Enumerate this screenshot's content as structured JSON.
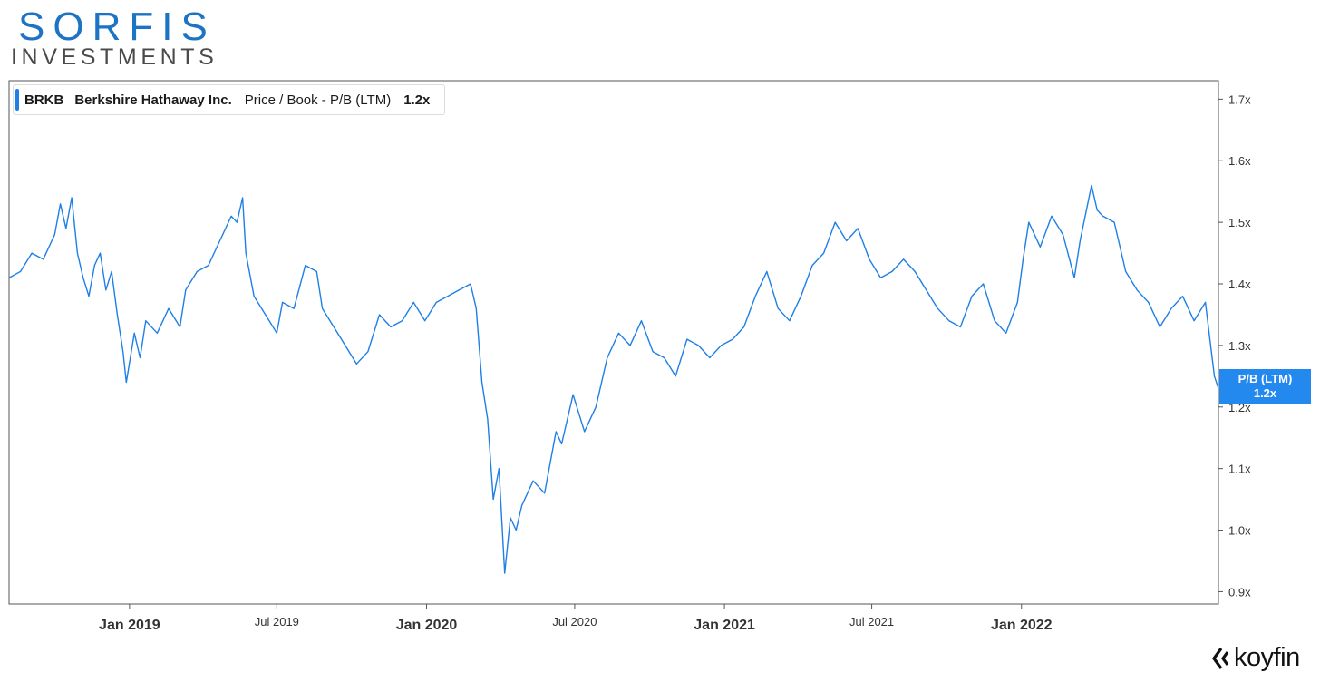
{
  "logo": {
    "name": "SORFIS",
    "tagline": "INVESTMENTS"
  },
  "legend": {
    "ticker": "BRKB",
    "company": "Berkshire Hathaway Inc.",
    "metric": "Price / Book - P/B (LTM)",
    "value": "1.2x",
    "color": "#1e7fe6"
  },
  "price_badge": {
    "label": "P/B (LTM)",
    "value": "1.2x",
    "color": "#2389ee"
  },
  "brand": {
    "name": "koyfin"
  },
  "chart_data": {
    "type": "line",
    "title": "",
    "xlabel": "",
    "ylabel": "",
    "xlim": [
      "2018-08-06",
      "2022-08-31"
    ],
    "ylim": [
      0.88,
      1.73
    ],
    "y_ticks": [
      {
        "value": 0.9,
        "label": "0.9x"
      },
      {
        "value": 1.0,
        "label": "1.0x"
      },
      {
        "value": 1.1,
        "label": "1.1x"
      },
      {
        "value": 1.2,
        "label": "1.2x"
      },
      {
        "value": 1.3,
        "label": "1.3x"
      },
      {
        "value": 1.4,
        "label": "1.4x"
      },
      {
        "value": 1.5,
        "label": "1.5x"
      },
      {
        "value": 1.6,
        "label": "1.6x"
      },
      {
        "value": 1.7,
        "label": "1.7x"
      }
    ],
    "x_ticks": [
      {
        "date": "2019-01-01",
        "label": "Jan 2019",
        "major": true
      },
      {
        "date": "2019-07-01",
        "label": "Jul 2019",
        "major": false
      },
      {
        "date": "2020-01-01",
        "label": "Jan 2020",
        "major": true
      },
      {
        "date": "2020-07-01",
        "label": "Jul 2020",
        "major": false
      },
      {
        "date": "2021-01-01",
        "label": "Jan 2021",
        "major": true
      },
      {
        "date": "2021-07-01",
        "label": "Jul 2021",
        "major": false
      },
      {
        "date": "2022-01-01",
        "label": "Jan 2022",
        "major": true
      }
    ],
    "grid": false,
    "line_color": "#1e7fe6",
    "series": [
      {
        "name": "BRKB Price / Book - P/B (LTM)",
        "points": [
          [
            "2018-08-06",
            1.41
          ],
          [
            "2018-08-20",
            1.42
          ],
          [
            "2018-09-03",
            1.45
          ],
          [
            "2018-09-17",
            1.44
          ],
          [
            "2018-10-01",
            1.48
          ],
          [
            "2018-10-08",
            1.53
          ],
          [
            "2018-10-15",
            1.49
          ],
          [
            "2018-10-22",
            1.54
          ],
          [
            "2018-10-29",
            1.45
          ],
          [
            "2018-11-05",
            1.41
          ],
          [
            "2018-11-12",
            1.38
          ],
          [
            "2018-11-19",
            1.43
          ],
          [
            "2018-11-26",
            1.45
          ],
          [
            "2018-12-03",
            1.39
          ],
          [
            "2018-12-10",
            1.42
          ],
          [
            "2018-12-17",
            1.35
          ],
          [
            "2018-12-24",
            1.29
          ],
          [
            "2018-12-28",
            1.24
          ],
          [
            "2019-01-07",
            1.32
          ],
          [
            "2019-01-14",
            1.28
          ],
          [
            "2019-01-21",
            1.34
          ],
          [
            "2019-02-04",
            1.32
          ],
          [
            "2019-02-18",
            1.36
          ],
          [
            "2019-03-04",
            1.33
          ],
          [
            "2019-03-11",
            1.39
          ],
          [
            "2019-03-25",
            1.42
          ],
          [
            "2019-04-08",
            1.43
          ],
          [
            "2019-04-22",
            1.47
          ],
          [
            "2019-05-06",
            1.51
          ],
          [
            "2019-05-13",
            1.5
          ],
          [
            "2019-05-20",
            1.54
          ],
          [
            "2019-05-24",
            1.45
          ],
          [
            "2019-06-03",
            1.38
          ],
          [
            "2019-06-17",
            1.35
          ],
          [
            "2019-07-01",
            1.32
          ],
          [
            "2019-07-08",
            1.37
          ],
          [
            "2019-07-22",
            1.36
          ],
          [
            "2019-08-05",
            1.43
          ],
          [
            "2019-08-19",
            1.42
          ],
          [
            "2019-08-26",
            1.36
          ],
          [
            "2019-09-09",
            1.33
          ],
          [
            "2019-09-23",
            1.3
          ],
          [
            "2019-10-07",
            1.27
          ],
          [
            "2019-10-21",
            1.29
          ],
          [
            "2019-11-04",
            1.35
          ],
          [
            "2019-11-18",
            1.33
          ],
          [
            "2019-12-02",
            1.34
          ],
          [
            "2019-12-16",
            1.37
          ],
          [
            "2019-12-30",
            1.34
          ],
          [
            "2020-01-13",
            1.37
          ],
          [
            "2020-01-27",
            1.38
          ],
          [
            "2020-02-10",
            1.39
          ],
          [
            "2020-02-24",
            1.4
          ],
          [
            "2020-03-02",
            1.36
          ],
          [
            "2020-03-09",
            1.24
          ],
          [
            "2020-03-16",
            1.18
          ],
          [
            "2020-03-23",
            1.05
          ],
          [
            "2020-03-30",
            1.1
          ],
          [
            "2020-04-06",
            0.93
          ],
          [
            "2020-04-13",
            1.02
          ],
          [
            "2020-04-20",
            1.0
          ],
          [
            "2020-04-27",
            1.04
          ],
          [
            "2020-05-11",
            1.08
          ],
          [
            "2020-05-25",
            1.06
          ],
          [
            "2020-06-08",
            1.16
          ],
          [
            "2020-06-15",
            1.14
          ],
          [
            "2020-06-22",
            1.18
          ],
          [
            "2020-06-29",
            1.22
          ],
          [
            "2020-07-13",
            1.16
          ],
          [
            "2020-07-27",
            1.2
          ],
          [
            "2020-08-10",
            1.28
          ],
          [
            "2020-08-24",
            1.32
          ],
          [
            "2020-09-07",
            1.3
          ],
          [
            "2020-09-21",
            1.34
          ],
          [
            "2020-10-05",
            1.29
          ],
          [
            "2020-10-19",
            1.28
          ],
          [
            "2020-11-02",
            1.25
          ],
          [
            "2020-11-16",
            1.31
          ],
          [
            "2020-11-30",
            1.3
          ],
          [
            "2020-12-14",
            1.28
          ],
          [
            "2020-12-28",
            1.3
          ],
          [
            "2021-01-11",
            1.31
          ],
          [
            "2021-01-25",
            1.33
          ],
          [
            "2021-02-08",
            1.38
          ],
          [
            "2021-02-22",
            1.42
          ],
          [
            "2021-03-08",
            1.36
          ],
          [
            "2021-03-22",
            1.34
          ],
          [
            "2021-04-05",
            1.38
          ],
          [
            "2021-04-19",
            1.43
          ],
          [
            "2021-05-03",
            1.45
          ],
          [
            "2021-05-17",
            1.5
          ],
          [
            "2021-05-31",
            1.47
          ],
          [
            "2021-06-14",
            1.49
          ],
          [
            "2021-06-28",
            1.44
          ],
          [
            "2021-07-12",
            1.41
          ],
          [
            "2021-07-26",
            1.42
          ],
          [
            "2021-08-09",
            1.44
          ],
          [
            "2021-08-23",
            1.42
          ],
          [
            "2021-09-06",
            1.39
          ],
          [
            "2021-09-20",
            1.36
          ],
          [
            "2021-10-04",
            1.34
          ],
          [
            "2021-10-18",
            1.33
          ],
          [
            "2021-11-01",
            1.38
          ],
          [
            "2021-11-15",
            1.4
          ],
          [
            "2021-11-29",
            1.34
          ],
          [
            "2021-12-13",
            1.32
          ],
          [
            "2021-12-27",
            1.37
          ],
          [
            "2022-01-03",
            1.44
          ],
          [
            "2022-01-10",
            1.5
          ],
          [
            "2022-01-24",
            1.46
          ],
          [
            "2022-02-07",
            1.51
          ],
          [
            "2022-02-21",
            1.48
          ],
          [
            "2022-03-07",
            1.41
          ],
          [
            "2022-03-14",
            1.47
          ],
          [
            "2022-03-28",
            1.56
          ],
          [
            "2022-04-04",
            1.52
          ],
          [
            "2022-04-11",
            1.51
          ],
          [
            "2022-04-25",
            1.5
          ],
          [
            "2022-05-09",
            1.42
          ],
          [
            "2022-05-23",
            1.39
          ],
          [
            "2022-06-06",
            1.37
          ],
          [
            "2022-06-20",
            1.33
          ],
          [
            "2022-07-04",
            1.36
          ],
          [
            "2022-07-18",
            1.38
          ],
          [
            "2022-08-01",
            1.34
          ],
          [
            "2022-08-15",
            1.37
          ],
          [
            "2022-08-26",
            1.25
          ],
          [
            "2022-08-31",
            1.23
          ]
        ]
      }
    ]
  }
}
